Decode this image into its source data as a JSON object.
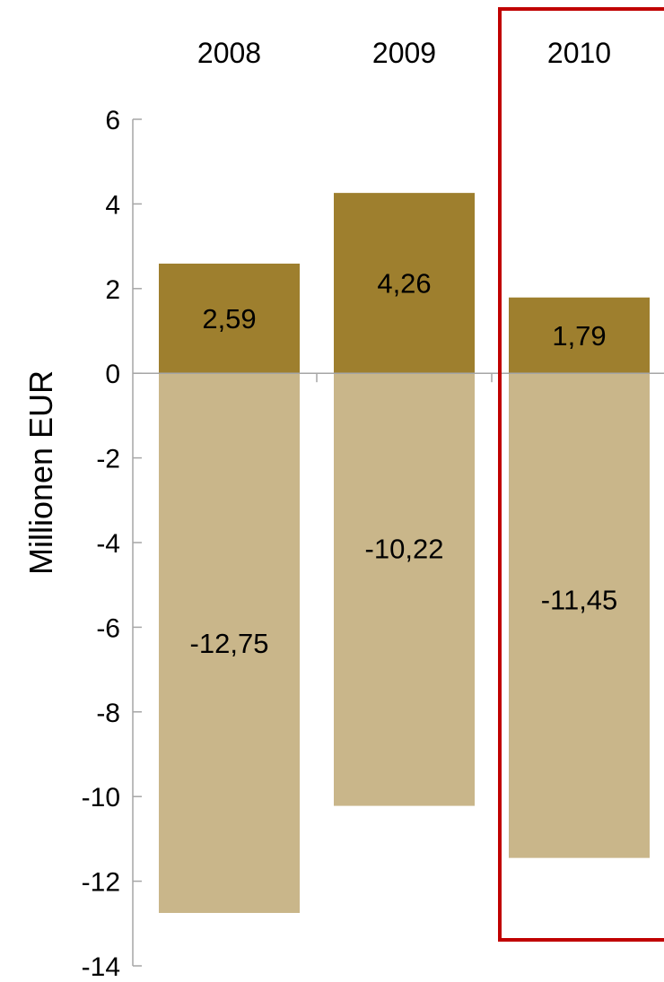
{
  "chart_data": {
    "type": "bar",
    "stacked": true,
    "categories": [
      "2008",
      "2009",
      "2010"
    ],
    "series": [
      {
        "values": [
          2.59,
          4.26,
          1.79
        ],
        "labels": [
          "2,59",
          "4,26",
          "1,79"
        ],
        "color": "#9E7F2E"
      },
      {
        "values": [
          -12.75,
          -10.22,
          -11.45
        ],
        "labels": [
          "-12,75",
          "-10,22",
          "-11,45"
        ],
        "color": "#C9B68A"
      }
    ],
    "ylabel": "Millionen EUR",
    "ylim": [
      -14,
      6
    ],
    "yticks": [
      6,
      4,
      2,
      0,
      -2,
      -4,
      -6,
      -8,
      -10,
      -12,
      -14
    ],
    "ytick_labels": [
      "6",
      "4",
      "2",
      "0",
      "-2",
      "-4",
      "-6",
      "-8",
      "-10",
      "-12",
      "-14"
    ],
    "category_axis_position": "top",
    "grid": false,
    "highlight": {
      "category": "2010",
      "color": "#C00000"
    },
    "axis_color": "#A6A6A6"
  }
}
